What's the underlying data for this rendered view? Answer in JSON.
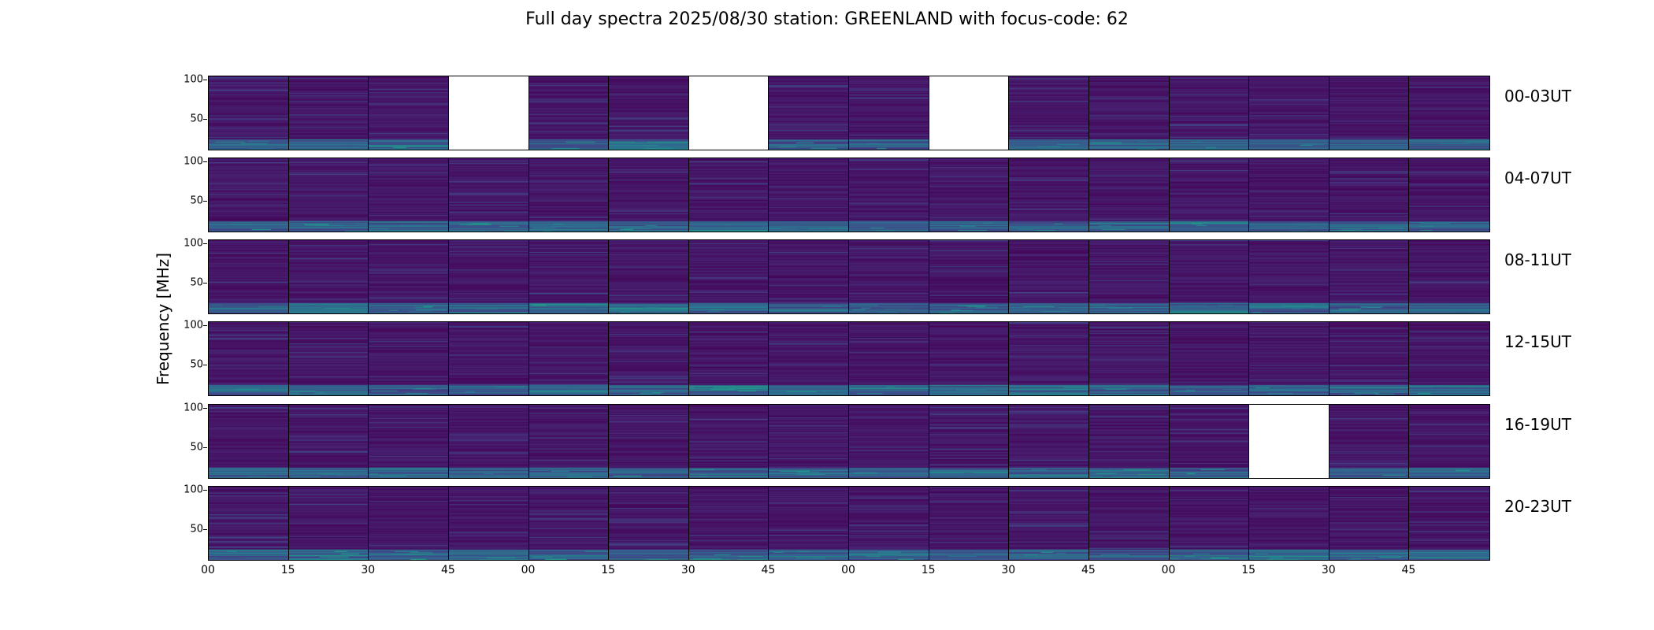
{
  "chart_data": {
    "type": "heatmap",
    "title": "Full day spectra 2025/08/30 station: GREENLAND with focus-code: 62",
    "ylabel": "Frequency [MHz]",
    "xlabel": "",
    "ylim": [
      10,
      105
    ],
    "yticks": [
      "100",
      "50"
    ],
    "ytick_values": [
      100,
      50
    ],
    "xtick_labels": [
      "00",
      "15",
      "30",
      "45",
      "00",
      "15",
      "30",
      "45",
      "00",
      "15",
      "30",
      "45",
      "00",
      "15",
      "30",
      "45"
    ],
    "panels_per_row": 16,
    "panel_minutes": 15,
    "colormap": "viridis",
    "rows": [
      {
        "label": "00-03UT",
        "missing_panels": [
          3,
          6,
          9
        ]
      },
      {
        "label": "04-07UT",
        "missing_panels": []
      },
      {
        "label": "08-11UT",
        "missing_panels": []
      },
      {
        "label": "12-15UT",
        "missing_panels": []
      },
      {
        "label": "16-19UT",
        "missing_panels": [
          13
        ]
      },
      {
        "label": "20-23UT",
        "missing_panels": []
      }
    ]
  }
}
